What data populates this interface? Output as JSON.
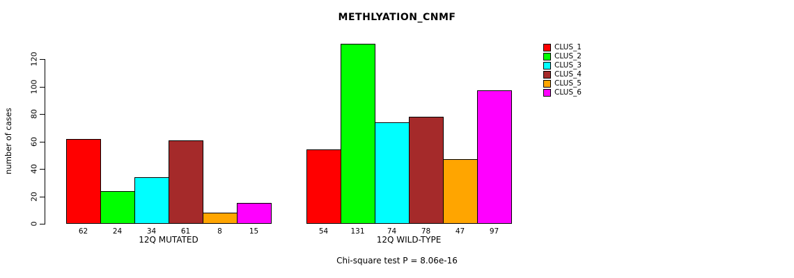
{
  "chart_data": {
    "type": "bar",
    "title": "METHLYATION_CNMF",
    "ylabel": "number of cases",
    "categories": [
      "12Q MUTATED",
      "12Q WILD-TYPE"
    ],
    "series": [
      {
        "name": "CLUS_1",
        "color": "#ff0000",
        "values": [
          62,
          54
        ]
      },
      {
        "name": "CLUS_2",
        "color": "#00ff00",
        "values": [
          24,
          131
        ]
      },
      {
        "name": "CLUS_3",
        "color": "#00ffff",
        "values": [
          34,
          74
        ]
      },
      {
        "name": "CLUS_4",
        "color": "#a52a2a",
        "values": [
          61,
          78
        ]
      },
      {
        "name": "CLUS_5",
        "color": "#ffa500",
        "values": [
          8,
          47
        ]
      },
      {
        "name": "CLUS_6",
        "color": "#ff00ff",
        "values": [
          15,
          97
        ]
      }
    ],
    "yticks": [
      0,
      20,
      40,
      60,
      80,
      100,
      120
    ],
    "ylim": [
      0,
      131
    ],
    "grid": false,
    "legend_position": "top-right",
    "value_labels_below_axis": true,
    "annotation": "Chi-square test P = 8.06e-16"
  }
}
